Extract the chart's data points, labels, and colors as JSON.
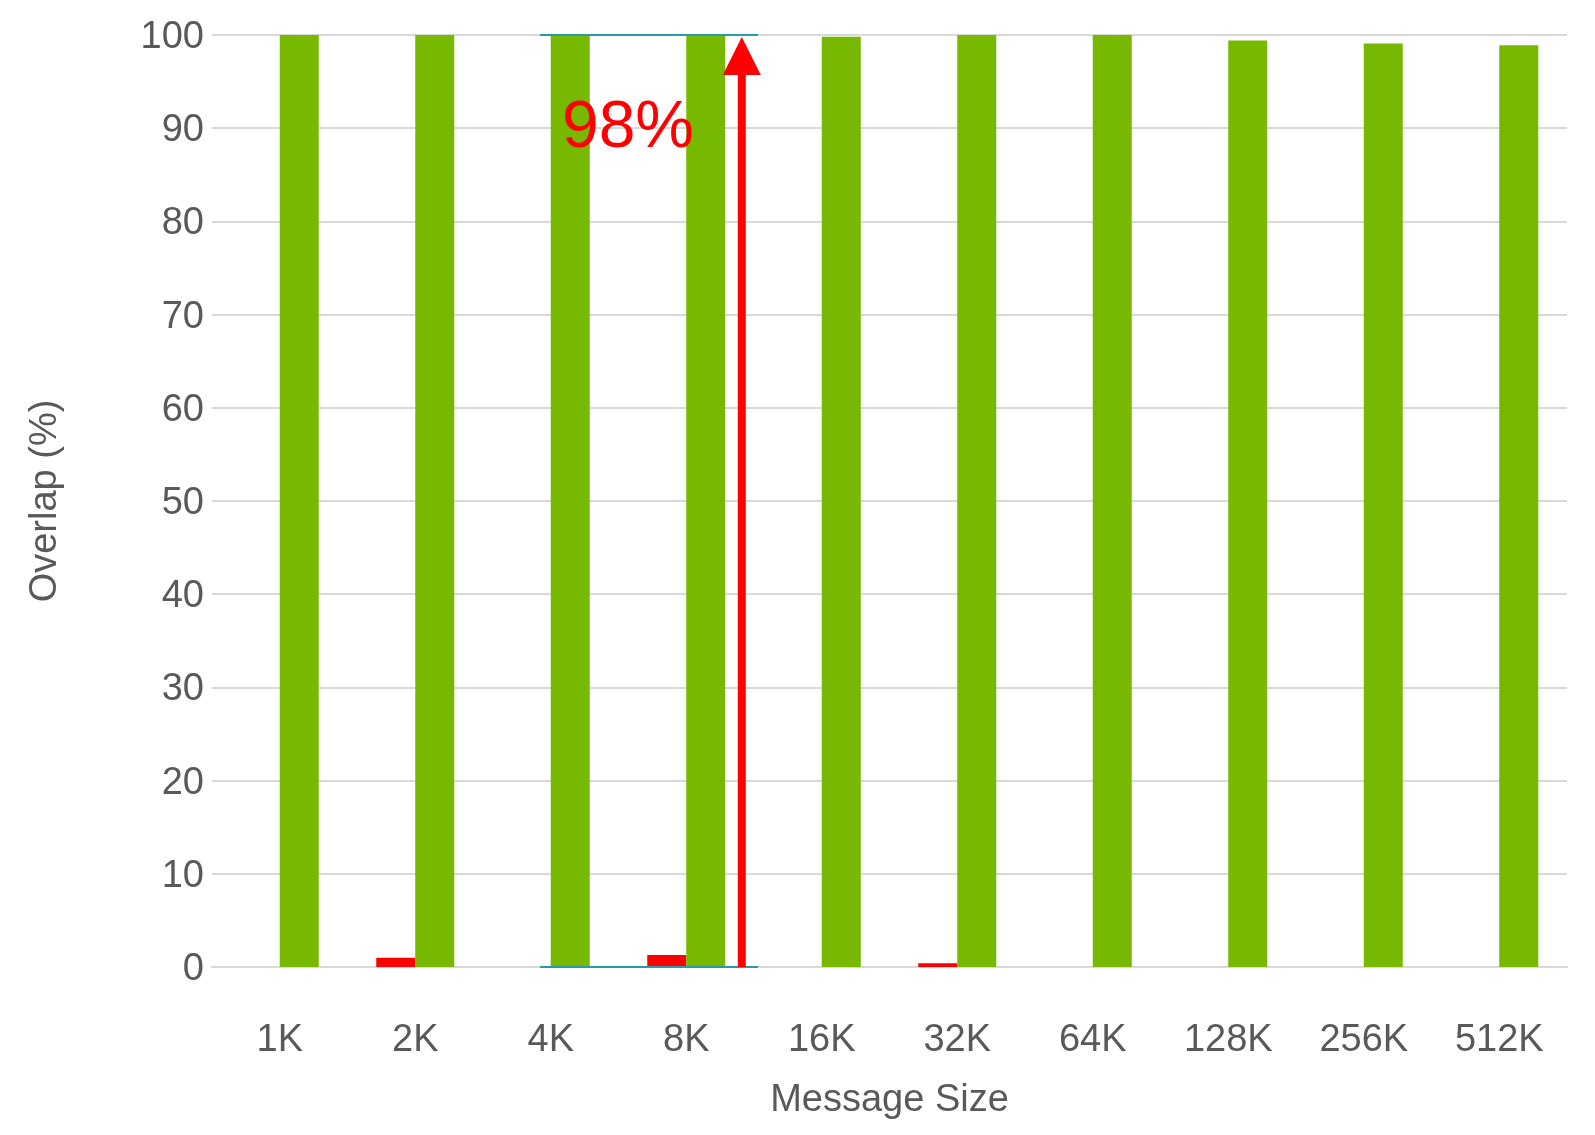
{
  "chart_data": {
    "type": "bar",
    "xlabel": "Message Size",
    "ylabel": "Overlap (%)",
    "categories": [
      "1K",
      "2K",
      "4K",
      "8K",
      "16K",
      "32K",
      "64K",
      "128K",
      "256K",
      "512K"
    ],
    "series": [
      {
        "color": "#ff0000",
        "values": [
          0,
          1.0,
          0,
          1.3,
          0,
          0.4,
          0,
          0,
          0,
          0
        ]
      },
      {
        "color": "#76b900",
        "values": [
          100,
          100,
          100,
          100,
          99.8,
          100,
          100,
          99.4,
          99.1,
          98.9
        ]
      }
    ],
    "ylim": [
      0,
      100
    ],
    "yticks": [
      0,
      10,
      20,
      30,
      40,
      50,
      60,
      70,
      80,
      90,
      100
    ],
    "grid": "y",
    "annotations": [
      "98%"
    ]
  }
}
